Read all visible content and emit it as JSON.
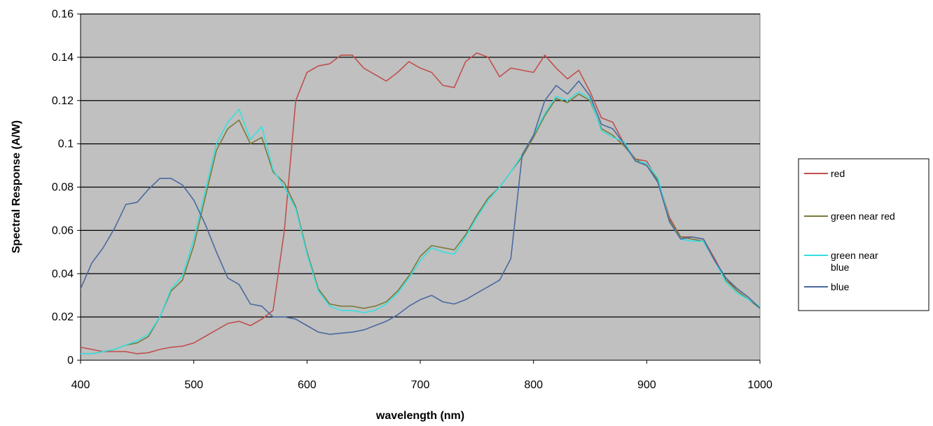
{
  "chart_data": {
    "type": "line",
    "title": "",
    "xlabel": "wavelength (nm)",
    "ylabel": "Spectral Response (A/W)",
    "xlim": [
      400,
      1000
    ],
    "ylim": [
      0,
      0.16
    ],
    "x_ticks": [
      "400",
      "500",
      "600",
      "700",
      "800",
      "900",
      "1000"
    ],
    "y_ticks": [
      "0",
      "0.02",
      "0.04",
      "0.06",
      "0.08",
      "0.1",
      "0.12",
      "0.14",
      "0.16"
    ],
    "grid": "horizontal",
    "legend_position": "right",
    "plot_background": "#c0c0c0",
    "series": [
      {
        "name": "red",
        "color": "#c0504d",
        "legend_lines": [
          "red"
        ],
        "points": [
          [
            400,
            0.006
          ],
          [
            410,
            0.005
          ],
          [
            420,
            0.004
          ],
          [
            430,
            0.004
          ],
          [
            440,
            0.004
          ],
          [
            450,
            0.003
          ],
          [
            460,
            0.0035
          ],
          [
            470,
            0.005
          ],
          [
            480,
            0.006
          ],
          [
            490,
            0.0065
          ],
          [
            500,
            0.008
          ],
          [
            510,
            0.011
          ],
          [
            520,
            0.014
          ],
          [
            530,
            0.017
          ],
          [
            540,
            0.018
          ],
          [
            550,
            0.016
          ],
          [
            560,
            0.019
          ],
          [
            570,
            0.023
          ],
          [
            580,
            0.06
          ],
          [
            590,
            0.12
          ],
          [
            600,
            0.133
          ],
          [
            610,
            0.136
          ],
          [
            620,
            0.137
          ],
          [
            630,
            0.141
          ],
          [
            640,
            0.141
          ],
          [
            650,
            0.135
          ],
          [
            660,
            0.132
          ],
          [
            670,
            0.129
          ],
          [
            680,
            0.133
          ],
          [
            690,
            0.138
          ],
          [
            700,
            0.135
          ],
          [
            710,
            0.133
          ],
          [
            720,
            0.127
          ],
          [
            730,
            0.126
          ],
          [
            740,
            0.138
          ],
          [
            750,
            0.142
          ],
          [
            760,
            0.14
          ],
          [
            770,
            0.131
          ],
          [
            780,
            0.135
          ],
          [
            790,
            0.134
          ],
          [
            800,
            0.133
          ],
          [
            810,
            0.141
          ],
          [
            820,
            0.135
          ],
          [
            830,
            0.13
          ],
          [
            840,
            0.134
          ],
          [
            850,
            0.124
          ],
          [
            860,
            0.112
          ],
          [
            870,
            0.11
          ],
          [
            880,
            0.1
          ],
          [
            890,
            0.093
          ],
          [
            900,
            0.092
          ],
          [
            910,
            0.083
          ],
          [
            920,
            0.066
          ],
          [
            930,
            0.057
          ],
          [
            940,
            0.057
          ],
          [
            950,
            0.056
          ],
          [
            960,
            0.047
          ],
          [
            970,
            0.037
          ],
          [
            980,
            0.033
          ],
          [
            990,
            0.029
          ],
          [
            1000,
            0.024
          ]
        ]
      },
      {
        "name": "green near red",
        "color": "#7a7a3a",
        "legend_lines": [
          "green near red"
        ],
        "points": [
          [
            400,
            0.003
          ],
          [
            410,
            0.003
          ],
          [
            420,
            0.004
          ],
          [
            430,
            0.005
          ],
          [
            440,
            0.007
          ],
          [
            450,
            0.008
          ],
          [
            460,
            0.011
          ],
          [
            470,
            0.02
          ],
          [
            480,
            0.032
          ],
          [
            490,
            0.037
          ],
          [
            500,
            0.053
          ],
          [
            510,
            0.075
          ],
          [
            520,
            0.097
          ],
          [
            530,
            0.107
          ],
          [
            540,
            0.111
          ],
          [
            550,
            0.1
          ],
          [
            560,
            0.103
          ],
          [
            570,
            0.087
          ],
          [
            580,
            0.082
          ],
          [
            590,
            0.071
          ],
          [
            600,
            0.05
          ],
          [
            610,
            0.033
          ],
          [
            620,
            0.026
          ],
          [
            630,
            0.025
          ],
          [
            640,
            0.025
          ],
          [
            650,
            0.024
          ],
          [
            660,
            0.025
          ],
          [
            670,
            0.027
          ],
          [
            680,
            0.032
          ],
          [
            690,
            0.039
          ],
          [
            700,
            0.048
          ],
          [
            710,
            0.053
          ],
          [
            720,
            0.052
          ],
          [
            730,
            0.051
          ],
          [
            740,
            0.058
          ],
          [
            750,
            0.067
          ],
          [
            760,
            0.075
          ],
          [
            770,
            0.08
          ],
          [
            780,
            0.087
          ],
          [
            790,
            0.094
          ],
          [
            800,
            0.103
          ],
          [
            810,
            0.113
          ],
          [
            820,
            0.121
          ],
          [
            830,
            0.119
          ],
          [
            840,
            0.123
          ],
          [
            850,
            0.12
          ],
          [
            860,
            0.107
          ],
          [
            870,
            0.104
          ],
          [
            880,
            0.099
          ],
          [
            890,
            0.093
          ],
          [
            900,
            0.09
          ],
          [
            910,
            0.083
          ],
          [
            920,
            0.065
          ],
          [
            930,
            0.057
          ],
          [
            940,
            0.056
          ],
          [
            950,
            0.055
          ],
          [
            960,
            0.046
          ],
          [
            970,
            0.037
          ],
          [
            980,
            0.032
          ],
          [
            990,
            0.028
          ],
          [
            1000,
            0.024
          ]
        ]
      },
      {
        "name": "green near blue",
        "color": "#33e0e0",
        "legend_lines": [
          "green near",
          "blue"
        ],
        "points": [
          [
            400,
            0.003
          ],
          [
            410,
            0.003
          ],
          [
            420,
            0.004
          ],
          [
            430,
            0.005
          ],
          [
            440,
            0.007
          ],
          [
            450,
            0.009
          ],
          [
            460,
            0.012
          ],
          [
            470,
            0.02
          ],
          [
            480,
            0.033
          ],
          [
            490,
            0.039
          ],
          [
            500,
            0.056
          ],
          [
            510,
            0.078
          ],
          [
            520,
            0.1
          ],
          [
            530,
            0.11
          ],
          [
            540,
            0.116
          ],
          [
            550,
            0.102
          ],
          [
            560,
            0.108
          ],
          [
            570,
            0.088
          ],
          [
            580,
            0.08
          ],
          [
            590,
            0.07
          ],
          [
            600,
            0.049
          ],
          [
            610,
            0.032
          ],
          [
            620,
            0.025
          ],
          [
            630,
            0.023
          ],
          [
            640,
            0.023
          ],
          [
            650,
            0.022
          ],
          [
            660,
            0.023
          ],
          [
            670,
            0.026
          ],
          [
            680,
            0.031
          ],
          [
            690,
            0.038
          ],
          [
            700,
            0.046
          ],
          [
            710,
            0.052
          ],
          [
            720,
            0.05
          ],
          [
            730,
            0.049
          ],
          [
            740,
            0.057
          ],
          [
            750,
            0.066
          ],
          [
            760,
            0.074
          ],
          [
            770,
            0.08
          ],
          [
            780,
            0.087
          ],
          [
            790,
            0.095
          ],
          [
            800,
            0.104
          ],
          [
            810,
            0.114
          ],
          [
            820,
            0.122
          ],
          [
            830,
            0.12
          ],
          [
            840,
            0.124
          ],
          [
            850,
            0.121
          ],
          [
            860,
            0.106
          ],
          [
            870,
            0.103
          ],
          [
            880,
            0.101
          ],
          [
            890,
            0.092
          ],
          [
            900,
            0.091
          ],
          [
            910,
            0.084
          ],
          [
            920,
            0.064
          ],
          [
            930,
            0.056
          ],
          [
            940,
            0.055
          ],
          [
            950,
            0.055
          ],
          [
            960,
            0.046
          ],
          [
            970,
            0.036
          ],
          [
            980,
            0.031
          ],
          [
            990,
            0.028
          ],
          [
            1000,
            0.025
          ]
        ]
      },
      {
        "name": "blue",
        "color": "#4a6aa0",
        "legend_lines": [
          "blue"
        ],
        "points": [
          [
            400,
            0.033
          ],
          [
            410,
            0.045
          ],
          [
            420,
            0.052
          ],
          [
            430,
            0.061
          ],
          [
            440,
            0.072
          ],
          [
            450,
            0.073
          ],
          [
            460,
            0.079
          ],
          [
            470,
            0.084
          ],
          [
            480,
            0.084
          ],
          [
            490,
            0.081
          ],
          [
            500,
            0.074
          ],
          [
            510,
            0.063
          ],
          [
            520,
            0.05
          ],
          [
            530,
            0.038
          ],
          [
            540,
            0.035
          ],
          [
            550,
            0.026
          ],
          [
            560,
            0.025
          ],
          [
            570,
            0.02
          ],
          [
            580,
            0.02
          ],
          [
            590,
            0.019
          ],
          [
            600,
            0.016
          ],
          [
            610,
            0.013
          ],
          [
            620,
            0.012
          ],
          [
            630,
            0.0125
          ],
          [
            640,
            0.013
          ],
          [
            650,
            0.014
          ],
          [
            660,
            0.016
          ],
          [
            670,
            0.018
          ],
          [
            680,
            0.021
          ],
          [
            690,
            0.025
          ],
          [
            700,
            0.028
          ],
          [
            710,
            0.03
          ],
          [
            720,
            0.027
          ],
          [
            730,
            0.026
          ],
          [
            740,
            0.028
          ],
          [
            750,
            0.031
          ],
          [
            760,
            0.034
          ],
          [
            770,
            0.037
          ],
          [
            780,
            0.047
          ],
          [
            790,
            0.095
          ],
          [
            800,
            0.104
          ],
          [
            810,
            0.12
          ],
          [
            820,
            0.127
          ],
          [
            830,
            0.123
          ],
          [
            840,
            0.129
          ],
          [
            850,
            0.122
          ],
          [
            860,
            0.109
          ],
          [
            870,
            0.107
          ],
          [
            880,
            0.1
          ],
          [
            890,
            0.092
          ],
          [
            900,
            0.09
          ],
          [
            910,
            0.082
          ],
          [
            920,
            0.064
          ],
          [
            930,
            0.056
          ],
          [
            940,
            0.057
          ],
          [
            950,
            0.056
          ],
          [
            960,
            0.046
          ],
          [
            970,
            0.038
          ],
          [
            980,
            0.033
          ],
          [
            990,
            0.029
          ],
          [
            1000,
            0.024
          ]
        ]
      }
    ]
  }
}
